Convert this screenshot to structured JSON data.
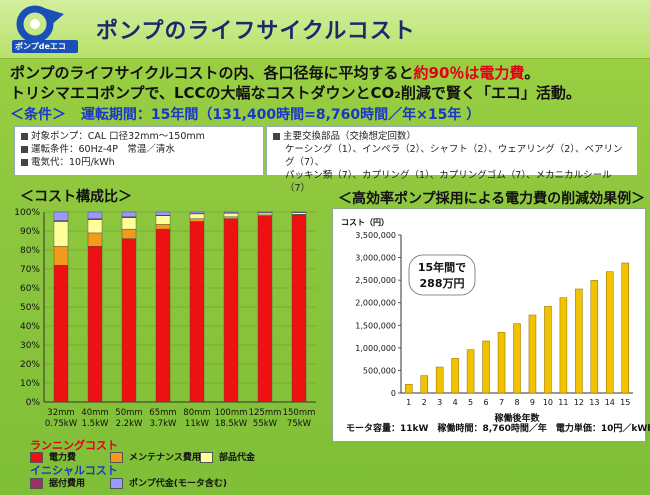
{
  "header": {
    "logo_text": "ポンプdeエコ",
    "title": "ポンプのライフサイクルコスト"
  },
  "headline": {
    "line1_prefix": "ポンプのライフサイクルコストの内、各口径毎に平均すると",
    "line1_highlight": "約90％は電力費",
    "line1_suffix": "。",
    "line2": "トリシマエコポンプで、LCCの大幅なコストダウンとCO₂削減で賢く「エコ」活動。"
  },
  "conditions": {
    "label": "＜条件＞",
    "period": "運転期間：15年間（131,400時間=8,760時間／年×15年 ）"
  },
  "info_left": [
    "対象ポンプ：CAL 口径32mm～150mm",
    "運転条件：60Hz-4P　常温／清水",
    "電気代：10円/kWh"
  ],
  "info_right": {
    "heading": "主要交換部品（交換想定回数）",
    "line1": "ケーシング（1）、インペラ（2）、シャフト（2）、ウェアリング（2）、ベアリング（7）、",
    "line2": "パッキン類（7）、カプリング（1）、カプリングゴム（7）、メカニカルシール（7）"
  },
  "chart_titles": {
    "left": "＜コスト構成比＞",
    "right": "＜高効率ポンプ採用による電力費の削減効果例＞"
  },
  "legend": {
    "running_title": "ランニングコスト",
    "initial_title": "イニシャルコスト",
    "electricity": "電力費",
    "maintenance": "メンテナンス費用",
    "parts": "部品代金",
    "installation": "据付費用",
    "pump_price": "ポンプ代金(モータ含む)"
  },
  "colors": {
    "electricity": "#ee1111",
    "maintenance": "#f39a1b",
    "parts": "#ffff99",
    "installation": "#993366",
    "pump_price": "#9999ff",
    "savings_bar": "#f2c200"
  },
  "footer_info": "モータ容量：11kW　稼働時間：8,760時間／年　電力単価：10円／kWh",
  "chart_data": [
    {
      "type": "bar",
      "stacked": true,
      "title": "＜コスト構成比＞",
      "ylim": [
        0,
        100
      ],
      "yticks": [
        "0%",
        "10%",
        "20%",
        "30%",
        "40%",
        "50%",
        "60%",
        "70%",
        "80%",
        "90%",
        "100%"
      ],
      "categories": [
        "32mm",
        "40mm",
        "50mm",
        "65mm",
        "80mm",
        "100mm",
        "125mm",
        "150mm"
      ],
      "sublabels": [
        "0.75kW",
        "1.5kW",
        "2.2kW",
        "3.7kW",
        "11kW",
        "18.5kW",
        "55kW",
        "75kW"
      ],
      "series": [
        {
          "name": "電力費",
          "color": "#ee1111",
          "values": [
            72,
            82,
            86,
            91,
            95,
            96.5,
            98,
            98.5
          ]
        },
        {
          "name": "メンテナンス費用",
          "color": "#f39a1b",
          "values": [
            10,
            7,
            5,
            2.5,
            1.5,
            1,
            0.5,
            0.3
          ]
        },
        {
          "name": "部品代金",
          "color": "#ffff99",
          "values": [
            13,
            7,
            6,
            4.5,
            2.5,
            1.8,
            1,
            0.8
          ]
        },
        {
          "name": "据付費用",
          "color": "#993366",
          "values": [
            0.5,
            0.5,
            0.5,
            0.3,
            0.2,
            0.2,
            0.1,
            0.1
          ]
        },
        {
          "name": "ポンプ代金(モータ含む)",
          "color": "#9999ff",
          "values": [
            4.5,
            3.5,
            2.5,
            1.7,
            0.8,
            0.5,
            0.4,
            0.3
          ]
        }
      ]
    },
    {
      "type": "bar",
      "title": "＜高効率ポンプ採用による電力費の削減効果例＞",
      "ylabel": "コスト（円）",
      "xlabel": "稼働後年数",
      "ylim": [
        0,
        3500000
      ],
      "yticks": [
        "0",
        "500,000",
        "1,000,000",
        "1,500,000",
        "2,000,000",
        "2,500,000",
        "3,000,000",
        "3,500,000"
      ],
      "categories": [
        "1",
        "2",
        "3",
        "4",
        "5",
        "6",
        "7",
        "8",
        "9",
        "10",
        "11",
        "12",
        "13",
        "14",
        "15"
      ],
      "values": [
        192000,
        384000,
        576000,
        768000,
        960000,
        1152000,
        1344000,
        1536000,
        1728000,
        1920000,
        2112000,
        2304000,
        2496000,
        2688000,
        2880000
      ],
      "annotation_line1": "15年間で",
      "annotation_line2": "288万円"
    }
  ]
}
